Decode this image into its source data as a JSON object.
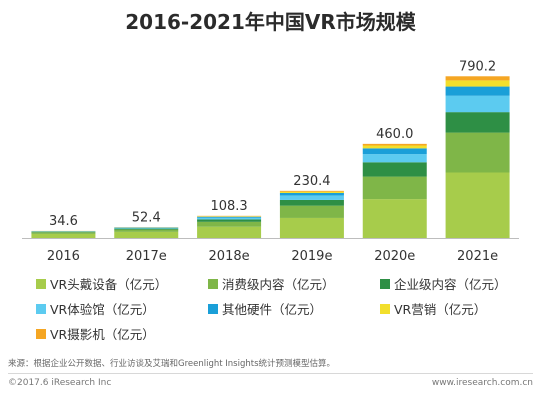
{
  "title": "2016-2021年中国VR市场规模",
  "chart_data": {
    "type": "bar",
    "stacked": true,
    "categories": [
      "2016",
      "2017e",
      "2018e",
      "2019e",
      "2020e",
      "2021e"
    ],
    "totals": [
      34.6,
      52.4,
      108.3,
      230.4,
      460.0,
      790.2
    ],
    "total_labels": [
      "34.6",
      "52.4",
      "108.3",
      "230.4",
      "460.0",
      "790.2"
    ],
    "series": [
      {
        "name": "VR头戴设备（亿元）",
        "color": "#a7cc4b",
        "values": [
          20,
          30,
          55,
          98,
          190,
          320
        ]
      },
      {
        "name": "消费级内容（亿元）",
        "color": "#7fb648",
        "values": [
          8,
          11,
          24,
          60,
          110,
          195
        ]
      },
      {
        "name": "企业级内容（亿元）",
        "color": "#2e8f45",
        "values": [
          3,
          5,
          12,
          28,
          70,
          100
        ]
      },
      {
        "name": "VR体验馆（亿元）",
        "color": "#5ccbf0",
        "values": [
          1.5,
          3,
          8,
          22,
          40,
          80
        ]
      },
      {
        "name": "其他硬件（亿元）",
        "color": "#1a9fd8",
        "values": [
          1,
          2,
          5,
          12,
          28,
          45
        ]
      },
      {
        "name": "VR营销（亿元）",
        "color": "#f2df2c",
        "values": [
          0.6,
          0.8,
          2.5,
          6,
          14,
          30
        ]
      },
      {
        "name": "VR摄影机（亿元）",
        "color": "#f5a623",
        "values": [
          0.5,
          0.6,
          1.8,
          4.4,
          8,
          20.2
        ]
      }
    ],
    "ylim": [
      0,
      860
    ],
    "grid": false,
    "legend_position": "bottom"
  },
  "source": "来源：根据企业公开数据、行业访谈及艾瑞和Greenlight Insights统计预测模型估算。",
  "footer_left": "©2017.6 iResearch Inc",
  "footer_right": "www.iresearch.com.cn"
}
